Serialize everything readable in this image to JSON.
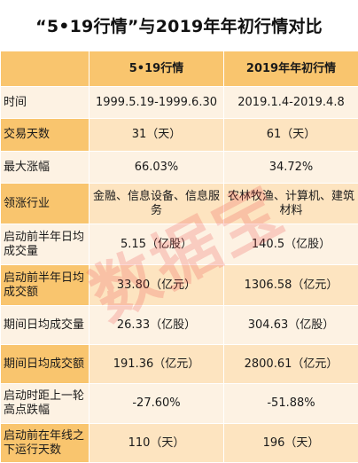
{
  "title": "“5•19行情”与2019年年初行情对比",
  "table": {
    "columns": [
      "",
      "5•19行情",
      "2019年年初行情"
    ],
    "rows": [
      {
        "label": "时间",
        "a": "1999.5.19-1999.6.30",
        "b": "2019.1.4-2019.4.8"
      },
      {
        "label": "交易天数",
        "a": "31（天）",
        "b": "61（天）"
      },
      {
        "label": "最大涨幅",
        "a": "66.03%",
        "b": "34.72%"
      },
      {
        "label": "领涨行业",
        "a": "金融、信息设备、信息服务",
        "b": "农林牧渔、计算机、建筑材料"
      },
      {
        "label": "启动前半年日均成交量",
        "a": "5.15（亿股）",
        "b": "140.5（亿股）"
      },
      {
        "label": "启动前半年日均成交额",
        "a": "33.80（亿元）",
        "b": "1306.58（亿元）"
      },
      {
        "label": "期间日均成交量",
        "a": "26.33（亿股）",
        "b": "304.63（亿股）"
      },
      {
        "label": "期间日均成交额",
        "a": "191.36（亿元）",
        "b": "2800.61（亿元）"
      },
      {
        "label": "启动时距上一轮高点跌幅",
        "a": "-27.60%",
        "b": "-51.88%"
      },
      {
        "label": "启动前在年线之下运行天数",
        "a": "110（天）",
        "b": "196（天）"
      }
    ]
  },
  "watermark": "数据宝"
}
